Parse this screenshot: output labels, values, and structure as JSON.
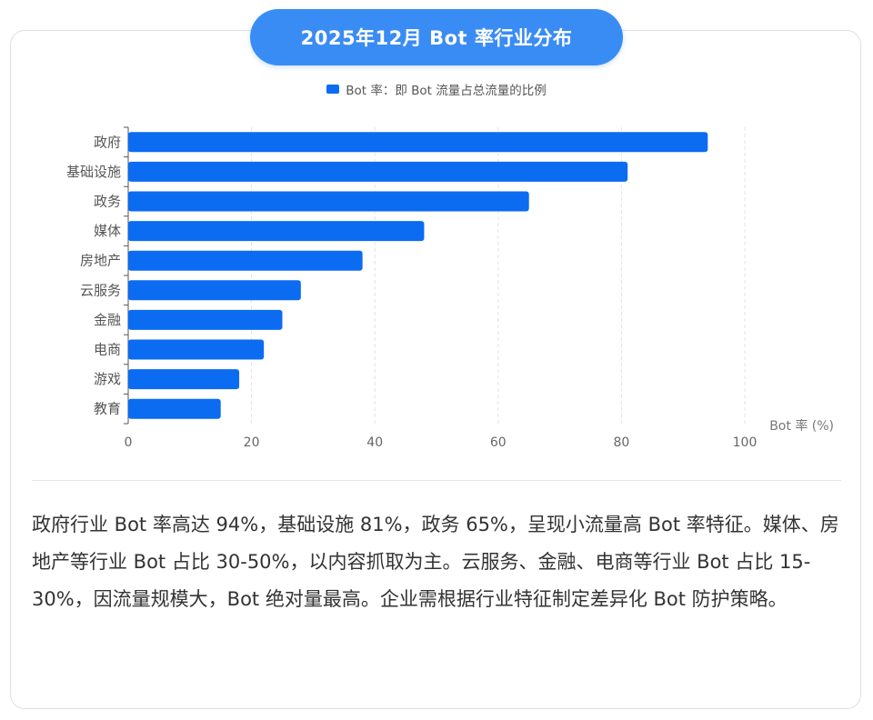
{
  "title": "2025年12月 Bot 率行业分布",
  "legend_label": "Bot 率：即 Bot 流量占总流量的比例",
  "colors": {
    "bar": "#0b6cf2",
    "title_bg": "#3a8cf5"
  },
  "chart_data": {
    "type": "bar",
    "orientation": "horizontal",
    "categories": [
      "政府",
      "基础设施",
      "政务",
      "媒体",
      "房地产",
      "云服务",
      "金融",
      "电商",
      "游戏",
      "教育"
    ],
    "series": [
      {
        "name": "Bot 率：即 Bot 流量占总流量的比例",
        "values": [
          94,
          81,
          65,
          48,
          38,
          28,
          25,
          22,
          18,
          15
        ]
      }
    ],
    "xlabel": "Bot 率 (%)",
    "xlim": [
      0,
      100
    ],
    "xticks": [
      "0",
      "20",
      "40",
      "60",
      "80",
      "100"
    ],
    "grid": true,
    "legend": "top-center"
  },
  "summary": "政府行业 Bot 率高达 94%，基础设施 81%，政务 65%，呈现小流量高 Bot 率特征。媒体、房地产等行业 Bot 占比 30-50%，以内容抓取为主。云服务、金融、电商等行业 Bot 占比 15-30%，因流量规模大，Bot 绝对量最高。企业需根据行业特征制定差异化 Bot 防护策略。"
}
